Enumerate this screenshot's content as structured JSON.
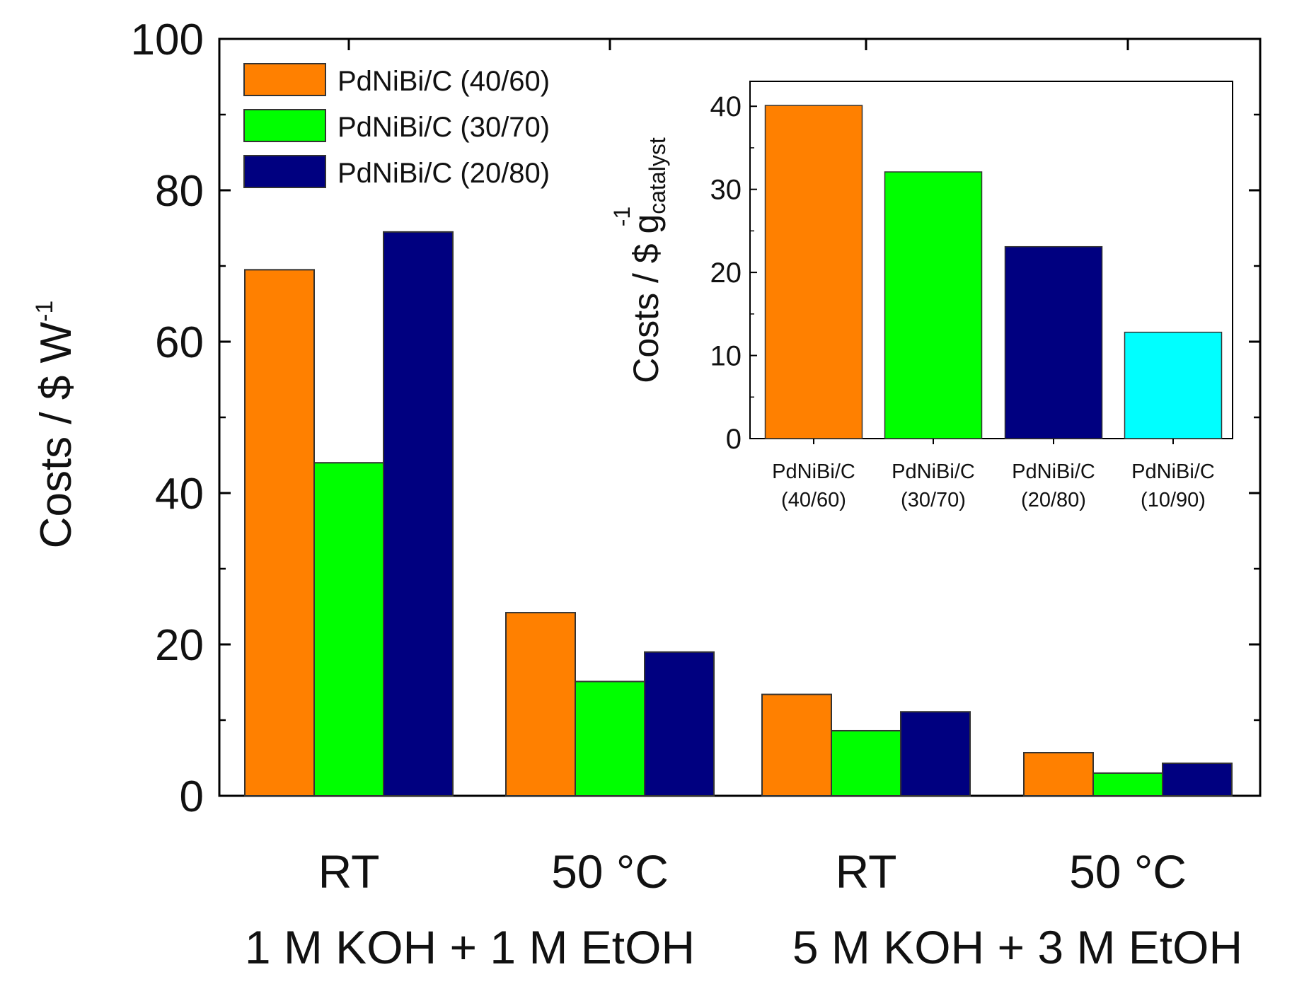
{
  "chart_data": [
    {
      "type": "bar",
      "ylabel": "Costs / $ W",
      "ylabel_sup": "-1",
      "ylim": [
        0,
        100
      ],
      "yticks": [
        "0",
        "20",
        "40",
        "60",
        "80",
        "100"
      ],
      "categories": [
        "RT",
        "50 °C",
        "RT",
        "50 °C"
      ],
      "group_labels": [
        "1 M KOH + 1 M EtOH",
        "5 M KOH + 3 M EtOH"
      ],
      "legend_position": "top-left",
      "series": [
        {
          "name": "PdNiBi/C (40/60)",
          "color": "#ff8000",
          "values": [
            69.5,
            24.2,
            13.4,
            5.7
          ]
        },
        {
          "name": "PdNiBi/C (30/70)",
          "color": "#00ff00",
          "values": [
            44.0,
            15.1,
            8.6,
            3.0
          ]
        },
        {
          "name": "PdNiBi/C (20/80)",
          "color": "#000080",
          "values": [
            74.5,
            19.0,
            11.1,
            4.3
          ]
        }
      ]
    },
    {
      "type": "bar",
      "position": "inset top-right",
      "ylabel": "Costs / $ g",
      "ylabel_sup": "-1",
      "ylabel_sub": "catalyst",
      "ylim": [
        0,
        43
      ],
      "yticks": [
        "0",
        "10",
        "20",
        "30",
        "40"
      ],
      "categories": [
        [
          "PdNiBi/C",
          "(40/60)"
        ],
        [
          "PdNiBi/C",
          "(30/70)"
        ],
        [
          "PdNiBi/C",
          "(20/80)"
        ],
        [
          "PdNiBi/C",
          "(10/90)"
        ]
      ],
      "values": [
        40.1,
        32.1,
        23.1,
        12.8
      ],
      "colors": [
        "#ff8000",
        "#00ff00",
        "#000080",
        "#00ffff"
      ]
    }
  ]
}
